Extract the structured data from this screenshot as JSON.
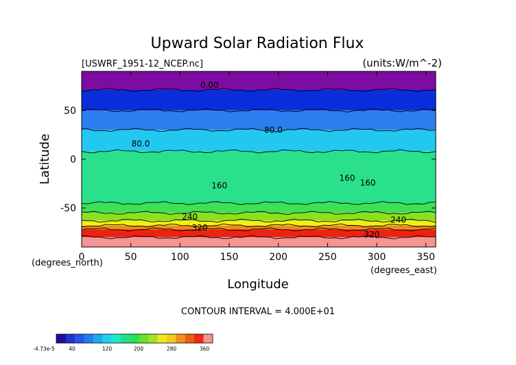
{
  "chart_data": {
    "type": "heatmap",
    "title": "Upward Solar Radiation Flux",
    "file_label": "[USWRF_1951-12_NCEP.nc]",
    "units_label": "(units:W/m^-2)",
    "xlabel": "Longitude",
    "ylabel": "Latitude",
    "x_units_label": "(degrees_east)",
    "y_units_label": "(degrees_north)",
    "xlim": [
      0,
      360
    ],
    "ylim": [
      -90,
      90
    ],
    "x_ticks": [
      0,
      50,
      100,
      150,
      200,
      250,
      300,
      350
    ],
    "y_ticks": [
      -50,
      0,
      50
    ],
    "contour_interval_text": "CONTOUR INTERVAL = 4.000E+01",
    "contour_labels": [
      {
        "text": "0.00",
        "lon": 130,
        "lat": 73
      },
      {
        "text": "80.0",
        "lon": 195,
        "lat": 27
      },
      {
        "text": "80.0",
        "lon": 60,
        "lat": 13
      },
      {
        "text": "160",
        "lon": 140,
        "lat": -30
      },
      {
        "text": "160",
        "lon": 270,
        "lat": -22
      },
      {
        "text": "160",
        "lon": 291,
        "lat": -27
      },
      {
        "text": "240",
        "lon": 110,
        "lat": -62
      },
      {
        "text": "240",
        "lon": 322,
        "lat": -65
      },
      {
        "text": "320",
        "lon": 120,
        "lat": -73
      },
      {
        "text": "320",
        "lon": 295,
        "lat": -80
      }
    ],
    "latitude_bands": [
      {
        "lat_from": 90,
        "lat_to": 71,
        "value": 0
      },
      {
        "lat_from": 71,
        "lat_to": 50,
        "value": 40
      },
      {
        "lat_from": 50,
        "lat_to": 30,
        "value": 75
      },
      {
        "lat_from": 30,
        "lat_to": 8,
        "value": 100
      },
      {
        "lat_from": 8,
        "lat_to": -45,
        "value": 150
      },
      {
        "lat_from": -45,
        "lat_to": -55,
        "value": 190
      },
      {
        "lat_from": -55,
        "lat_to": -63,
        "value": 225
      },
      {
        "lat_from": -63,
        "lat_to": -68,
        "value": 260
      },
      {
        "lat_from": -68,
        "lat_to": -72,
        "value": 300
      },
      {
        "lat_from": -72,
        "lat_to": -80,
        "value": 340
      },
      {
        "lat_from": -80,
        "lat_to": -90,
        "value": 370
      }
    ],
    "colorbar": {
      "tick_labels": [
        "-4.73e-5",
        "40",
        "120",
        "200",
        "280",
        "360"
      ],
      "colors": [
        "#1a0f9e",
        "#2233cc",
        "#2255ee",
        "#1e7fe8",
        "#1eaaee",
        "#1ed0f0",
        "#22e6d0",
        "#22e08a",
        "#2ce055",
        "#66e02c",
        "#a6e01e",
        "#e8e81e",
        "#f4c81e",
        "#f09018",
        "#f05a14",
        "#f02818",
        "#f0968c"
      ]
    }
  },
  "colors": {
    "band_0": "#7d0ca3",
    "band_40": "#0a2ddc",
    "band_75": "#2c7ef0",
    "band_100": "#22c8f0",
    "band_150": "#2be08a",
    "band_190": "#3ee055",
    "band_225": "#8ce01e",
    "band_260": "#f0f018",
    "band_300": "#f08c14",
    "band_340": "#ec2212",
    "band_370": "#f49494"
  }
}
